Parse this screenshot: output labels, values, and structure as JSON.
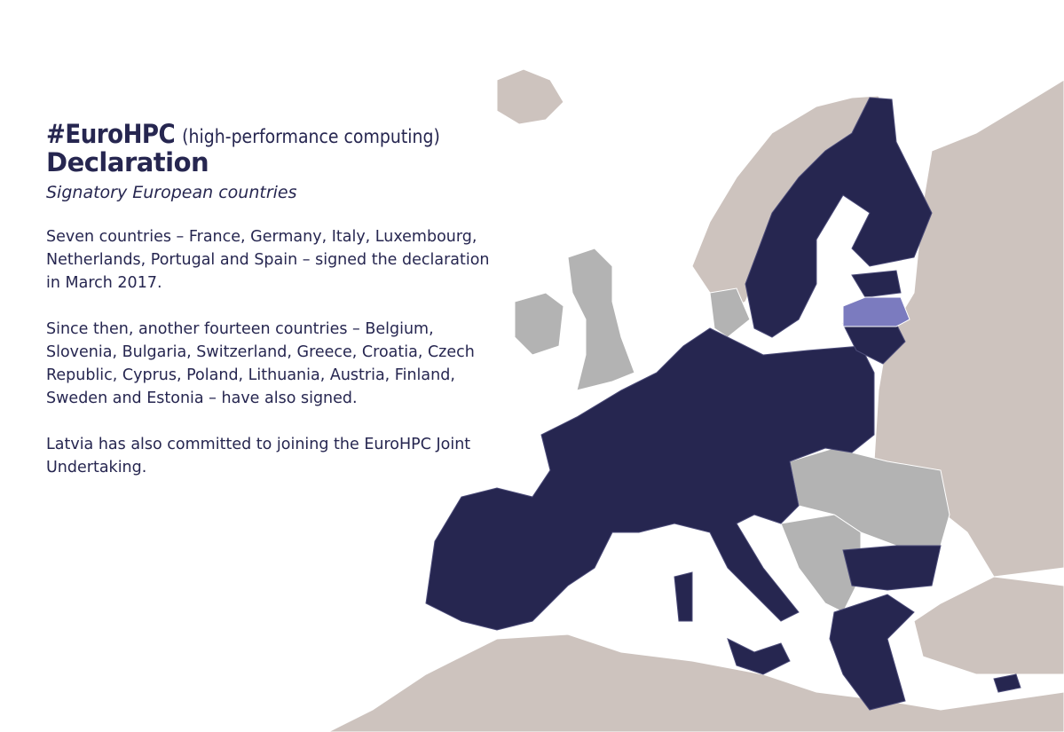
{
  "header": {
    "title": "#EuroHPC",
    "title_note": "(high-performance computing)",
    "title_line2": "Declaration",
    "subtitle": "Signatory European countries"
  },
  "paragraphs": [
    "Seven countries – France, Germany, Italy, Luxembourg, Netherlands, Portugal and Spain – signed the declaration in March 2017.",
    "Since then, another fourteen countries – Belgium, Slovenia, Bulgaria, Switzerland, Greece, Croatia, Czech Republic, Cyprus, Poland, Lithuania, Austria, Finland, Sweden and Estonia – have also signed.",
    "Latvia has also committed to joining the EuroHPC Joint Undertaking."
  ]
}
